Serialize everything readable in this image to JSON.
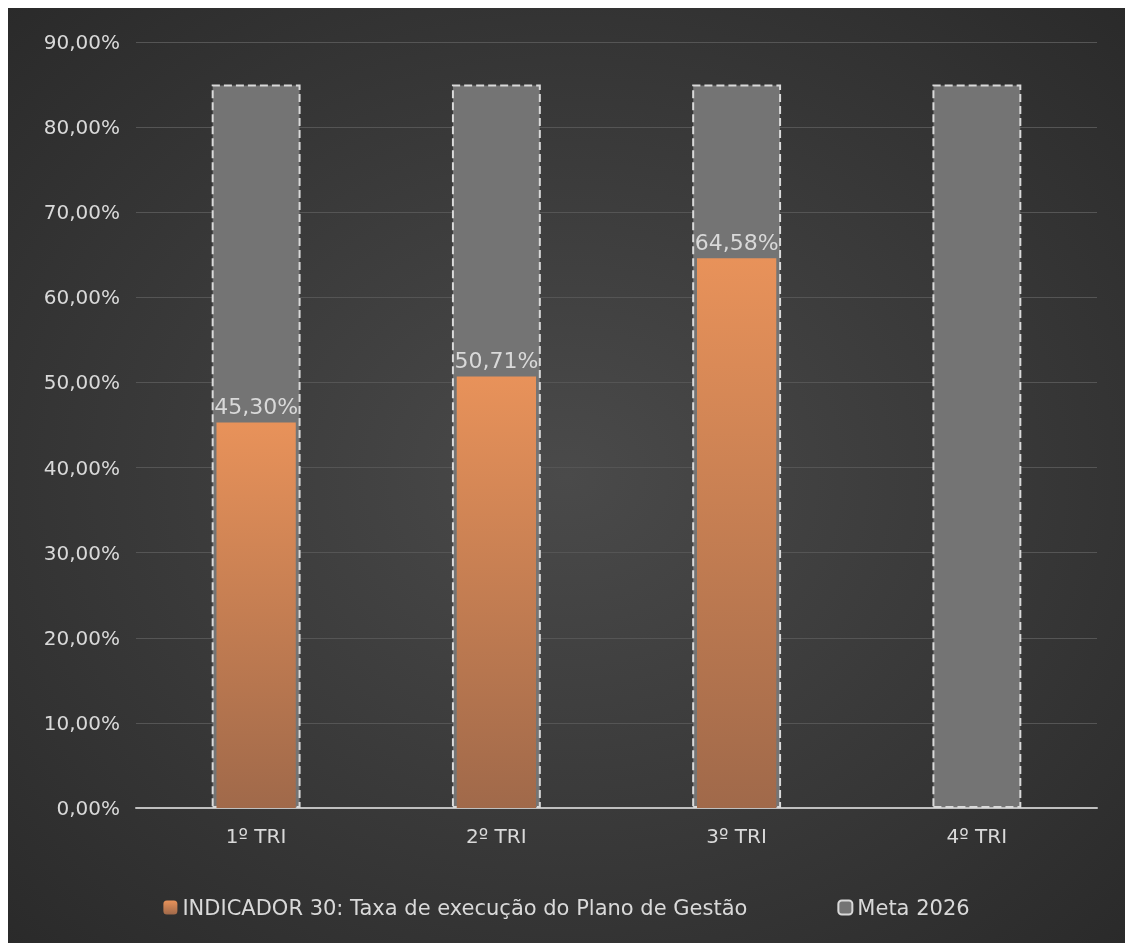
{
  "chart_data": {
    "type": "bar",
    "categories": [
      "1º TRI",
      "2º TRI",
      "3º TRI",
      "4º TRI"
    ],
    "series": [
      {
        "name": "INDICADOR 30: Taxa de execução do Plano de Gestão",
        "color": "#e8925a",
        "values": [
          45.3,
          50.71,
          64.58,
          null
        ],
        "value_labels": [
          "45,30%",
          "50,71%",
          "64,58%",
          null
        ]
      },
      {
        "name": "Meta 2026",
        "color": "#747474",
        "values": [
          85,
          85,
          85,
          85
        ],
        "line_style": "dashed"
      }
    ],
    "ylim": [
      0,
      90
    ],
    "yticks": [
      {
        "value": 0,
        "label": "0,00%"
      },
      {
        "value": 10,
        "label": "10,00%"
      },
      {
        "value": 20,
        "label": "20,00%"
      },
      {
        "value": 30,
        "label": "30,00%"
      },
      {
        "value": 40,
        "label": "40,00%"
      },
      {
        "value": 50,
        "label": "50,00%"
      },
      {
        "value": 60,
        "label": "60,00%"
      },
      {
        "value": 70,
        "label": "70,00%"
      },
      {
        "value": 80,
        "label": "80,00%"
      },
      {
        "value": 90,
        "label": "90,00%"
      }
    ],
    "grid": "y",
    "legend": "bottom"
  }
}
